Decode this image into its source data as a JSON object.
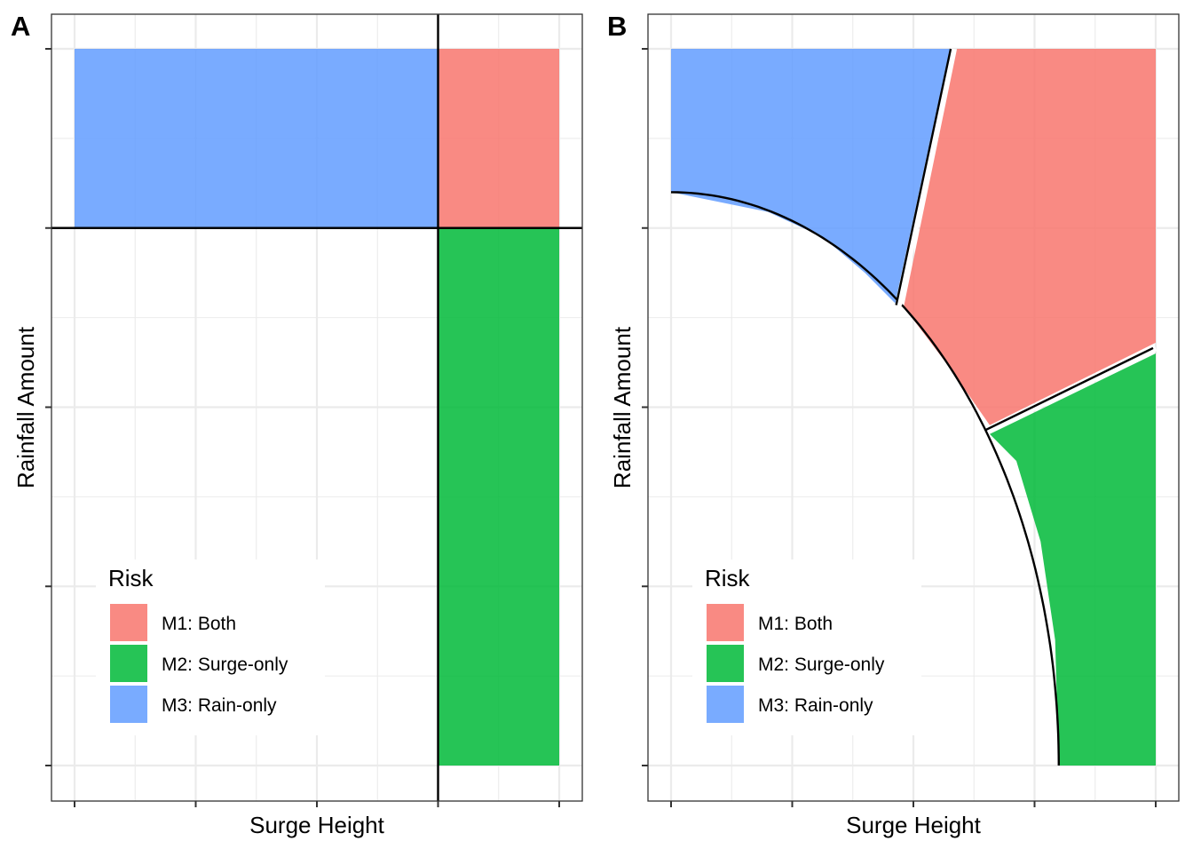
{
  "figure": {
    "panels": [
      "A",
      "B"
    ]
  },
  "chart_data": [
    {
      "panel": "A",
      "type": "area",
      "xlabel": "Surge Height",
      "ylabel": "Rainfall Amount",
      "x_tick_labels": [],
      "y_tick_labels": [],
      "xlim": [
        0,
        4
      ],
      "ylim": [
        0,
        4
      ],
      "grid": true,
      "legend": {
        "title": "Risk",
        "position": "bottom-left",
        "entries": [
          "M1: Both",
          "M2: Surge-only",
          "M3: Rain-only"
        ]
      },
      "colors": {
        "M1: Both": "#F8766D",
        "M2: Surge-only": "#00BA38",
        "M3: Rain-only": "#619CFF"
      },
      "thresholds": {
        "x": 3,
        "y": 3
      },
      "regions": [
        {
          "name": "M1: Both",
          "polygon": [
            [
              3,
              3
            ],
            [
              4,
              3
            ],
            [
              4,
              4
            ],
            [
              3,
              4
            ]
          ]
        },
        {
          "name": "M2: Surge-only",
          "polygon": [
            [
              3,
              0
            ],
            [
              4,
              0
            ],
            [
              4,
              3
            ],
            [
              3,
              3
            ]
          ]
        },
        {
          "name": "M3: Rain-only",
          "polygon": [
            [
              0,
              3
            ],
            [
              3,
              3
            ],
            [
              3,
              4
            ],
            [
              0,
              4
            ]
          ]
        }
      ]
    },
    {
      "panel": "B",
      "type": "area",
      "xlabel": "Surge Height",
      "ylabel": "Rainfall Amount",
      "x_tick_labels": [],
      "y_tick_labels": [],
      "xlim": [
        0,
        4
      ],
      "ylim": [
        0,
        4
      ],
      "grid": true,
      "legend": {
        "title": "Risk",
        "position": "bottom-left",
        "entries": [
          "M1: Both",
          "M2: Surge-only",
          "M3: Rain-only"
        ]
      },
      "colors": {
        "M1: Both": "#F8766D",
        "M2: Surge-only": "#00BA38",
        "M3: Rain-only": "#619CFF"
      },
      "boundary_ellipse": {
        "a": 3.2,
        "b": 3.2
      },
      "regions": [
        {
          "name": "M3: Rain-only",
          "polygon": [
            [
              0,
              3.2
            ],
            [
              0.8,
              3.09
            ],
            [
              1.25,
              2.95
            ],
            [
              1.6,
              2.75
            ],
            [
              1.85,
              2.58
            ],
            [
              2.3,
              4
            ],
            [
              0,
              4
            ]
          ]
        },
        {
          "name": "M1: Both",
          "polygon": [
            [
              1.92,
              2.56
            ],
            [
              2.36,
              4
            ],
            [
              4,
              4
            ],
            [
              4,
              2.36
            ],
            [
              2.63,
              1.9
            ],
            [
              2.3,
              2.22
            ]
          ]
        },
        {
          "name": "M2: Surge-only",
          "polygon": [
            [
              2.63,
              1.85
            ],
            [
              4,
              2.3
            ],
            [
              4,
              0
            ],
            [
              3.2,
              0
            ],
            [
              3.17,
              0.7
            ],
            [
              3.05,
              1.25
            ],
            [
              2.85,
              1.7
            ]
          ]
        }
      ]
    }
  ]
}
